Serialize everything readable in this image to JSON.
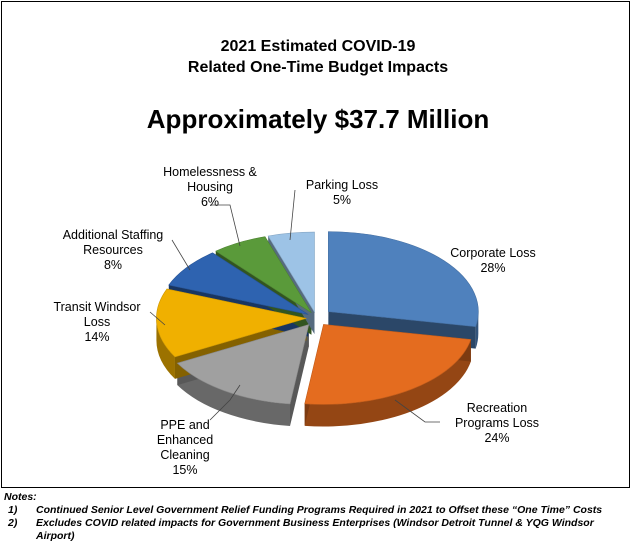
{
  "chart_data": {
    "type": "pie",
    "title_lines": [
      "2021 Estimated COVID-19",
      "Related One-Time Budget Impacts"
    ],
    "subtitle": "Approximately $37.7 Million",
    "slices": [
      {
        "name": "Corporate Loss",
        "label_lines": [
          "Corporate Loss"
        ],
        "value": 28,
        "pct_label": "28%",
        "color": "#4f81bd"
      },
      {
        "name": "Recreation Programs Loss",
        "label_lines": [
          "Recreation",
          "Programs Loss"
        ],
        "value": 24,
        "pct_label": "24%",
        "color": "#e46c1f"
      },
      {
        "name": "PPE and Enhanced Cleaning",
        "label_lines": [
          "PPE and",
          "Enhanced",
          "Cleaning"
        ],
        "value": 15,
        "pct_label": "15%",
        "color": "#a0a0a0"
      },
      {
        "name": "Transit Windsor Loss",
        "label_lines": [
          "Transit Windsor",
          "Loss"
        ],
        "value": 14,
        "pct_label": "14%",
        "color": "#f0b000"
      },
      {
        "name": "Additional Staffing Resources",
        "label_lines": [
          "Additional Staffing",
          "Resources"
        ],
        "value": 8,
        "pct_label": "8%",
        "color": "#2e63b0"
      },
      {
        "name": "Homelessness & Housing",
        "label_lines": [
          "Homelessness &",
          "Housing"
        ],
        "value": 6,
        "pct_label": "6%",
        "color": "#5a9a3a"
      },
      {
        "name": "Parking Loss",
        "label_lines": [
          "Parking Loss"
        ],
        "value": 5,
        "pct_label": "5%",
        "color": "#9dc3e6"
      }
    ],
    "legend": "none (data labels)"
  },
  "notes": {
    "heading": "Notes:",
    "items": [
      {
        "num": "1)",
        "text": "Continued Senior Level Government Relief Funding Programs Required in 2021 to Offset these “One Time” Costs"
      },
      {
        "num": "2)",
        "text": "Excludes COVID related impacts for Government Business Enterprises (Windsor Detroit Tunnel & YQG Windsor",
        "text2": "Airport)"
      }
    ]
  }
}
